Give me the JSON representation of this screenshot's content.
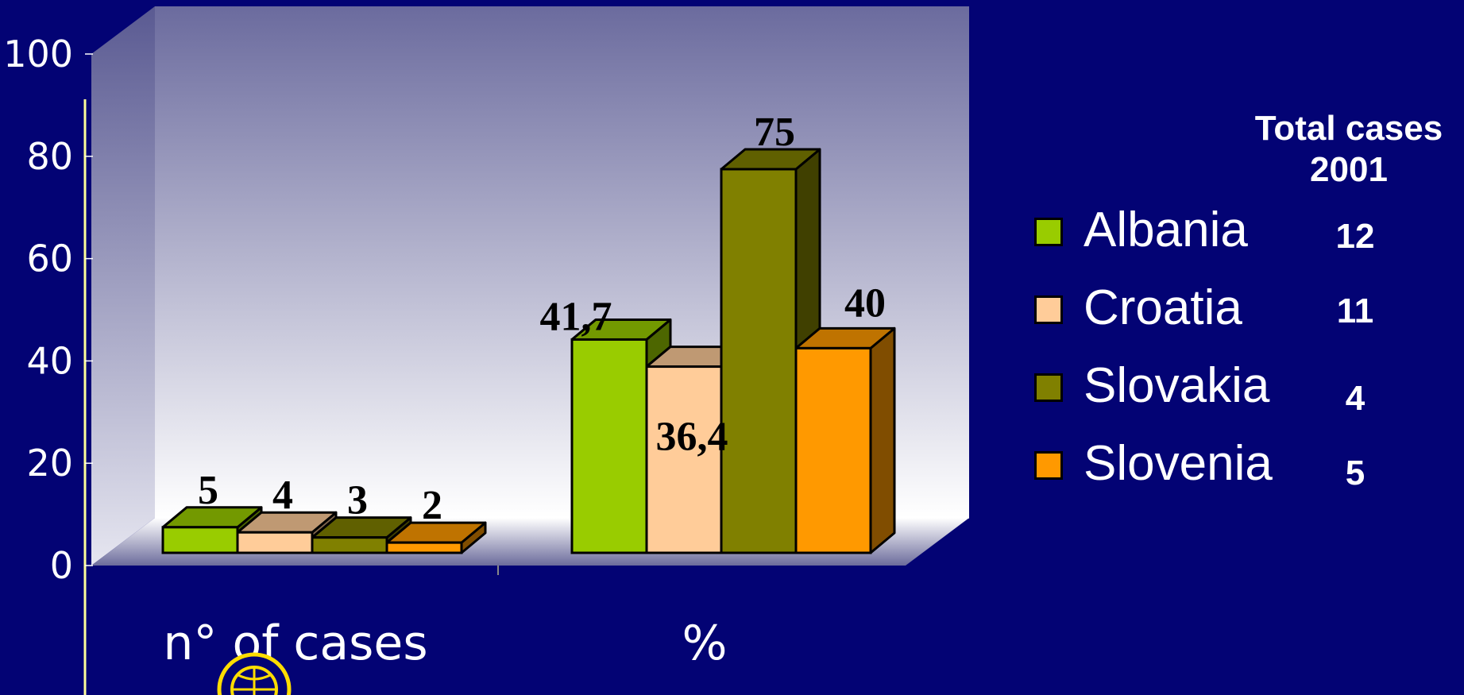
{
  "chart_data": {
    "type": "bar",
    "categories": [
      "n° of cases",
      "%"
    ],
    "series": [
      {
        "name": "Albania",
        "values": [
          5,
          41.7
        ],
        "labels": [
          "5",
          "41,7"
        ],
        "color": "#99cc00"
      },
      {
        "name": "Croatia",
        "values": [
          4,
          36.4
        ],
        "labels": [
          "4",
          "36,4"
        ],
        "color": "#ffcc99"
      },
      {
        "name": "Slovakia",
        "values": [
          3,
          75
        ],
        "labels": [
          "3",
          "75"
        ],
        "color": "#808000"
      },
      {
        "name": "Slovenia",
        "values": [
          2,
          40
        ],
        "labels": [
          "2",
          "40"
        ],
        "color": "#ff9900"
      }
    ],
    "ylim": [
      0,
      100
    ],
    "yticks": [
      "0",
      "20",
      "40",
      "60",
      "80",
      "100"
    ],
    "legend_placement": "right",
    "background_color": "#030374",
    "wall_color_top": "#6b6b9e",
    "wall_color_bottom": "#ffffff"
  },
  "legend": {
    "title": "Total cases 2001",
    "totals": [
      "12",
      "11",
      "4",
      "5"
    ]
  }
}
